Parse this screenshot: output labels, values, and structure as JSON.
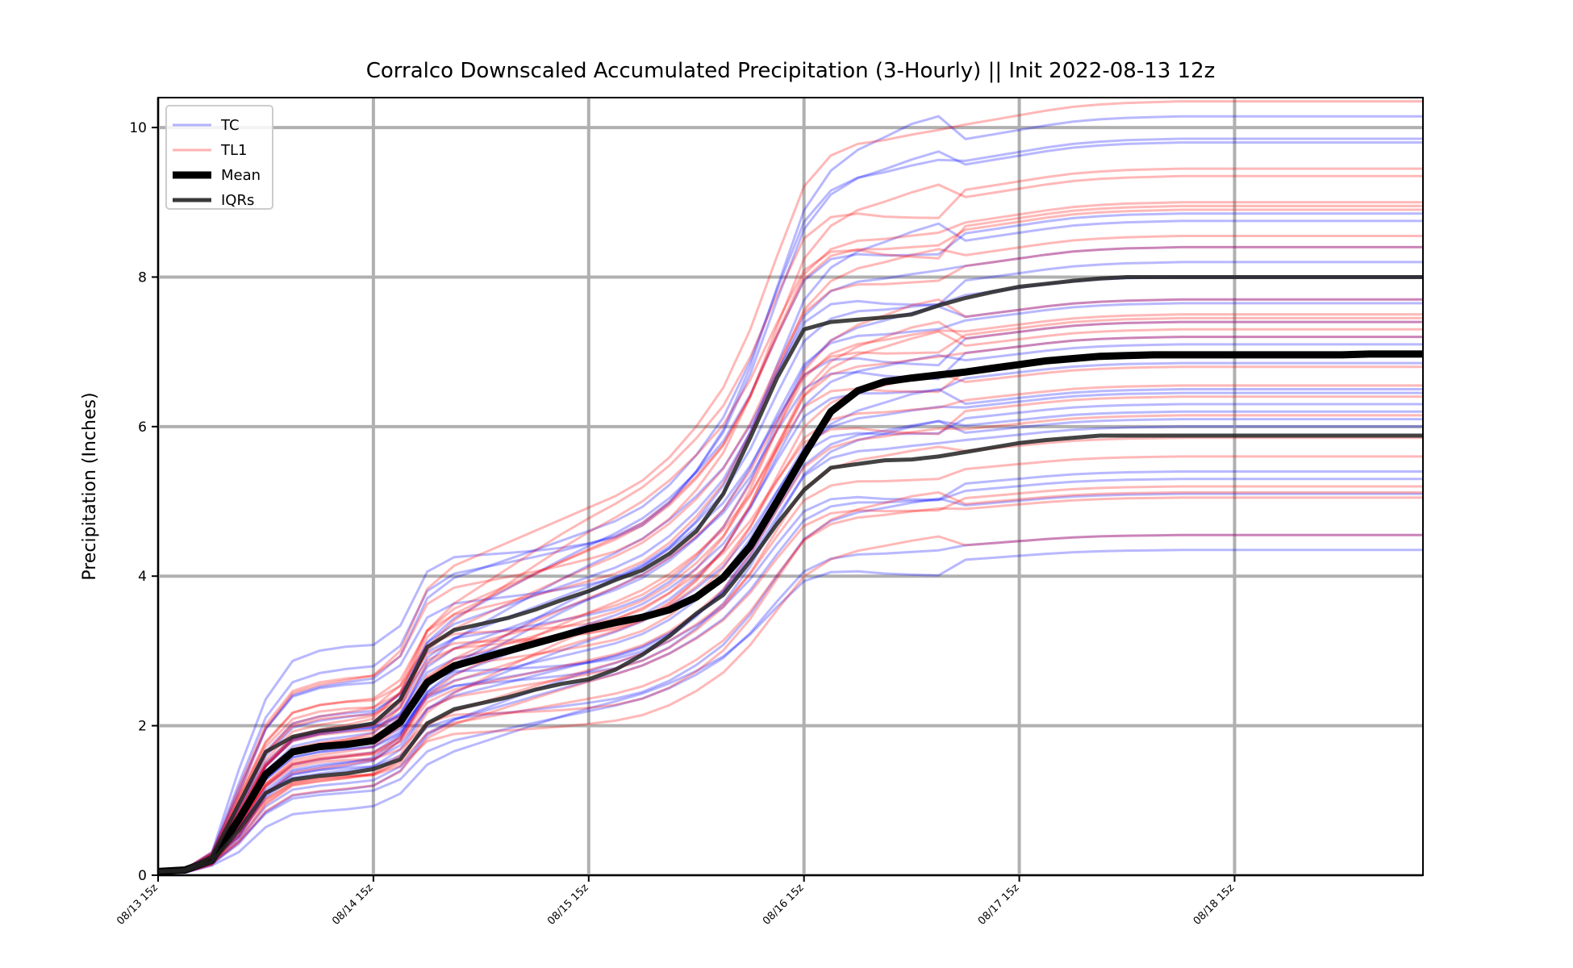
{
  "chart_data": {
    "type": "line",
    "title": "Corralco Downscaled Accumulated Precipitation (3-Hourly) || Init 2022-08-13 12z",
    "xlabel": "",
    "ylabel": "Precipitation (Inches)",
    "x_tick_labels": [
      "08/13 15z",
      "08/14 15z",
      "08/15 15z",
      "08/16 15z",
      "08/17 15z",
      "08/18 15z"
    ],
    "x_tick_hours": [
      0,
      24,
      48,
      72,
      96,
      120
    ],
    "xlim_hours": [
      0,
      141
    ],
    "y_ticks": [
      0,
      2,
      4,
      6,
      8,
      10
    ],
    "ylim": [
      0,
      10.4
    ],
    "grid": true,
    "legend_position": "top-left",
    "legend": [
      {
        "label": "TC",
        "color": "#0000ff"
      },
      {
        "label": "TL1",
        "color": "#ff0000"
      },
      {
        "label": "Mean",
        "color": "#000000"
      },
      {
        "label": "IQRs",
        "color": "#222222"
      }
    ],
    "colors": {
      "tc": "#0000ff",
      "tl1": "#ff0000",
      "mean": "#000000",
      "iqr": "#222222",
      "grid": "#b0b0b0"
    },
    "x_hours": [
      0,
      3,
      6,
      9,
      12,
      15,
      18,
      21,
      24,
      27,
      30,
      33,
      36,
      39,
      42,
      45,
      48,
      51,
      54,
      57,
      60,
      63,
      66,
      69,
      72,
      75,
      78,
      81,
      84,
      87,
      90,
      93,
      96,
      99,
      102,
      105,
      108,
      111,
      114,
      117,
      120,
      123,
      126,
      129,
      132,
      135,
      138,
      141
    ],
    "member_profile": {
      "hours": [
        0,
        3,
        6,
        9,
        12,
        15,
        18,
        21,
        24,
        27,
        30,
        33,
        36,
        39,
        42,
        45,
        48,
        51,
        54,
        57,
        60,
        63,
        66,
        69,
        72,
        75,
        78,
        81,
        84,
        87,
        90,
        93,
        96,
        99,
        102,
        105,
        108,
        111,
        114,
        117,
        120,
        123,
        126,
        129,
        132,
        135,
        138,
        141
      ],
      "cumulative_fraction": [
        0.005,
        0.008,
        0.03,
        0.105,
        0.19,
        0.235,
        0.246,
        0.252,
        0.258,
        0.29,
        0.37,
        0.4,
        0.415,
        0.43,
        0.445,
        0.46,
        0.475,
        0.49,
        0.51,
        0.54,
        0.58,
        0.63,
        0.705,
        0.8,
        0.89,
        0.93,
        0.945,
        0.95,
        0.957,
        0.963,
        0.97,
        0.976,
        0.982,
        0.988,
        0.993,
        0.996,
        0.998,
        0.999,
        1.0,
        1.0,
        1.0,
        1.0,
        1.0,
        1.0,
        1.0,
        1.0,
        1.0,
        1.0
      ]
    },
    "series": [
      {
        "name": "Mean",
        "values": [
          0.05,
          0.07,
          0.2,
          0.75,
          1.35,
          1.65,
          1.72,
          1.75,
          1.8,
          2.05,
          2.58,
          2.8,
          2.9,
          3.0,
          3.1,
          3.2,
          3.3,
          3.38,
          3.45,
          3.55,
          3.72,
          3.98,
          4.4,
          5.0,
          5.62,
          6.2,
          6.48,
          6.6,
          6.65,
          6.69,
          6.73,
          6.78,
          6.83,
          6.88,
          6.91,
          6.94,
          6.95,
          6.96,
          6.96,
          6.96,
          6.96,
          6.96,
          6.96,
          6.96,
          6.96,
          6.97,
          6.97,
          6.97
        ]
      },
      {
        "name": "IQRs",
        "values": [
          0.05,
          0.07,
          0.25,
          0.95,
          1.65,
          1.85,
          1.93,
          1.97,
          2.03,
          2.35,
          3.05,
          3.28,
          3.36,
          3.44,
          3.55,
          3.68,
          3.8,
          3.95,
          4.08,
          4.3,
          4.6,
          5.1,
          5.85,
          6.65,
          7.3,
          7.4,
          7.43,
          7.46,
          7.5,
          7.62,
          7.72,
          7.8,
          7.87,
          7.91,
          7.95,
          7.98,
          8.0,
          8.0,
          8.0,
          8.0,
          8.0,
          8.0,
          8.0,
          8.0,
          8.0,
          8.0,
          8.0,
          8.0
        ]
      },
      {
        "name": "IQRs",
        "values": [
          0.05,
          0.06,
          0.18,
          0.6,
          1.1,
          1.28,
          1.33,
          1.36,
          1.42,
          1.55,
          2.03,
          2.22,
          2.3,
          2.38,
          2.48,
          2.56,
          2.62,
          2.75,
          2.95,
          3.2,
          3.5,
          3.75,
          4.2,
          4.7,
          5.15,
          5.45,
          5.5,
          5.55,
          5.56,
          5.6,
          5.66,
          5.72,
          5.78,
          5.82,
          5.85,
          5.88,
          5.88,
          5.88,
          5.88,
          5.88,
          5.88,
          5.88,
          5.88,
          5.88,
          5.88,
          5.88,
          5.88,
          5.88
        ]
      }
    ],
    "members_tc_final": [
      4.35,
      4.55,
      5.1,
      5.4,
      6.0,
      6.1,
      6.3,
      6.45,
      6.5,
      6.85,
      7.1,
      7.4,
      7.65,
      7.7,
      8.2,
      8.4,
      8.75,
      8.85,
      9.85,
      10.15,
      5.3,
      6.2,
      7.2,
      8.0,
      9.8
    ],
    "members_tl1_final": [
      5.05,
      5.12,
      5.6,
      5.85,
      6.4,
      6.55,
      6.8,
      6.95,
      7.2,
      7.3,
      7.45,
      7.5,
      7.7,
      8.4,
      8.55,
      8.95,
      9.0,
      9.35,
      9.45,
      10.35,
      4.55,
      5.2,
      6.15,
      7.4,
      8.9
    ]
  }
}
